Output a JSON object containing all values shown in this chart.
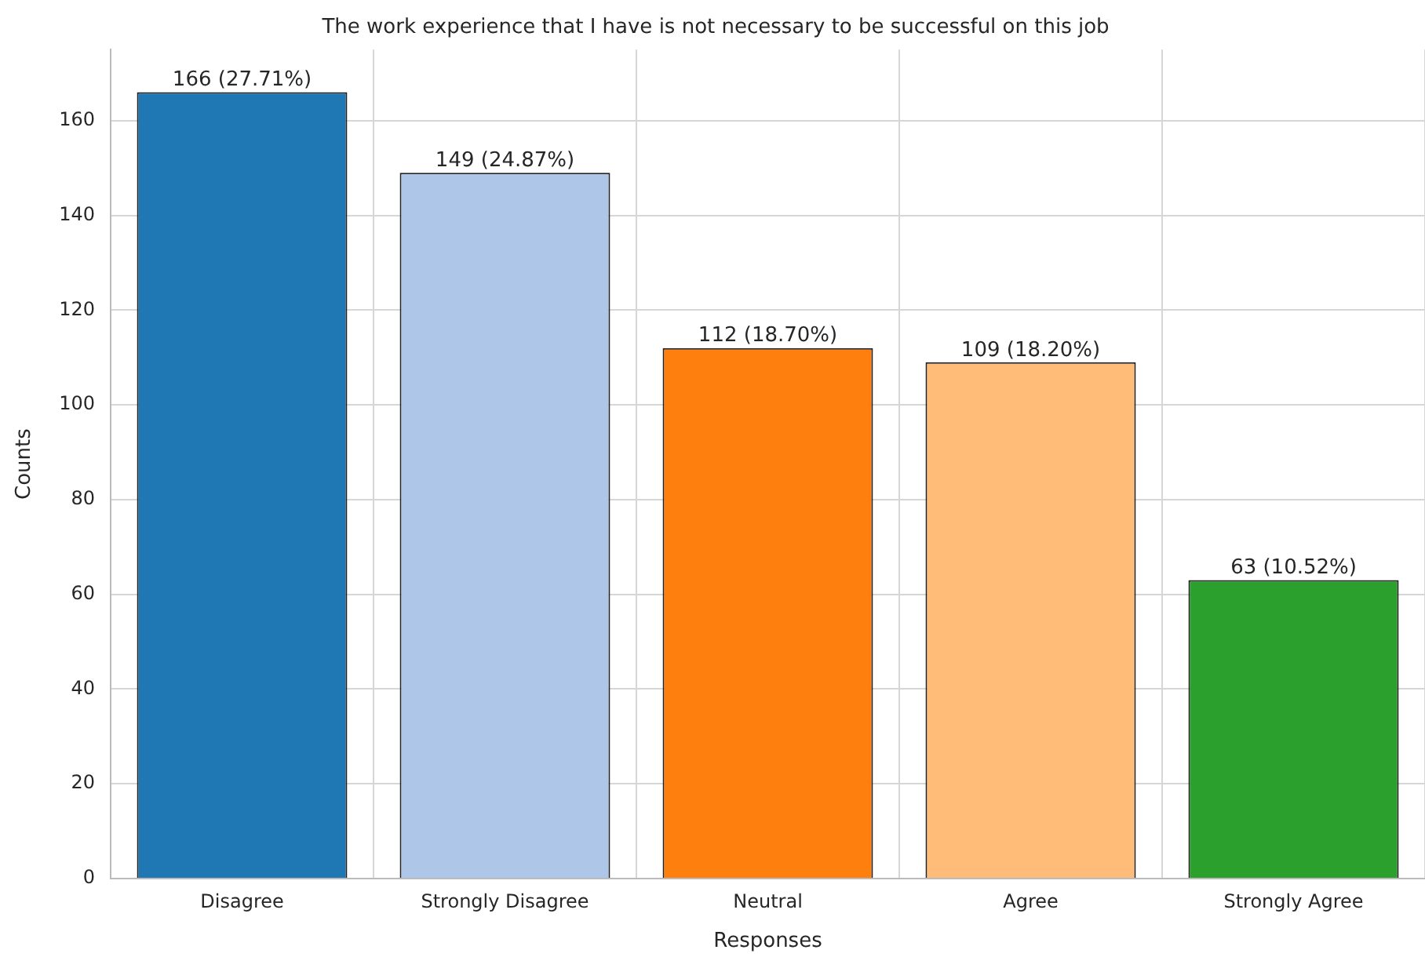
{
  "chart_data": {
    "type": "bar",
    "title": "The work experience that I have is not necessary to be successful on this job",
    "xlabel": "Responses",
    "ylabel": "Counts",
    "categories": [
      "Disagree",
      "Strongly Disagree",
      "Neutral",
      "Agree",
      "Strongly Agree"
    ],
    "values": [
      166,
      149,
      112,
      109,
      63
    ],
    "colors": [
      "#1f77b4",
      "#aec7e8",
      "#ff7f0e",
      "#ffbb78",
      "#2ca02c"
    ],
    "value_labels": [
      "166 (27.71%)",
      "149 (24.87%)",
      "112 (18.70%)",
      "109 (18.20%)",
      "63 (10.52%)"
    ],
    "ylim": [
      0,
      175
    ],
    "yticks": [
      0,
      20,
      40,
      60,
      80,
      100,
      120,
      140,
      160
    ],
    "grid": true
  }
}
